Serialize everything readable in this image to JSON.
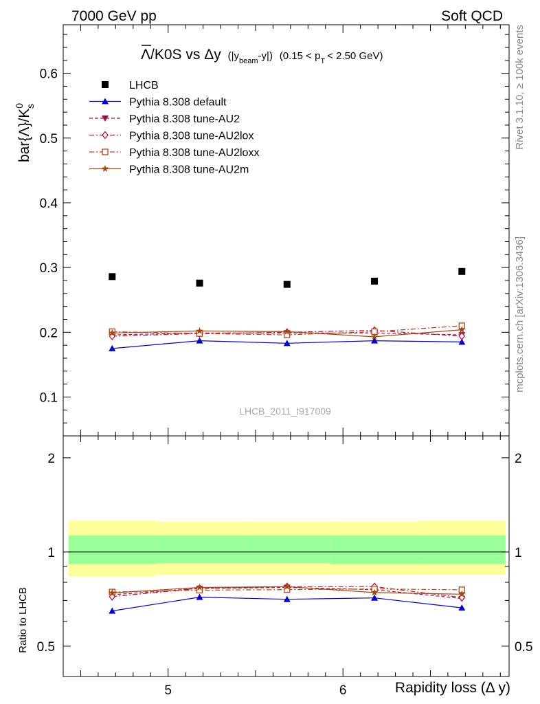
{
  "header": {
    "left": "7000 GeV pp",
    "right": "Soft QCD"
  },
  "side_labels": {
    "rivet": "Rivet 3.1.10, ≥ 100k events",
    "mcplots": "mcplots.cern.ch [arXiv:1306.3436]"
  },
  "watermark": "LHCB_2011_I917009",
  "colors": {
    "lhcb": "#000000",
    "default": "#0000dd",
    "au2": "#a0104a",
    "au2lox": "#c01030",
    "au2loxx": "#c04010",
    "au2m": "#a04a10",
    "band_outer": "#ffff99",
    "band_inner": "#99ff99"
  },
  "chart_data": [
    {
      "type": "scatter",
      "title_parts": {
        "main": "Λ/K0S vs Δy",
        "sel_open": "(|y",
        "sel_sub": "beam",
        "sel_close": "-y|)",
        "range_open": "(0.15 < p",
        "range_sub": "T",
        "range_close": "< 2.50 GeV)"
      },
      "ylabel": "bar{Λ}/K",
      "ylabel_sup": "0",
      "ylabel_sub": "s",
      "ylim": [
        0.04,
        0.675
      ],
      "xlim": [
        4.4,
        6.95
      ],
      "yticks": [
        0.1,
        0.2,
        0.3,
        0.4,
        0.5,
        0.6
      ],
      "ytick_labels": [
        "0.1",
        "0.2",
        "0.3",
        "0.4",
        "0.5",
        "0.6"
      ],
      "x": [
        4.68,
        5.18,
        5.68,
        6.18,
        6.68
      ],
      "series": [
        {
          "name": "LHCB",
          "key": "lhcb",
          "marker": "square",
          "line": "none",
          "values": [
            0.286,
            0.276,
            0.274,
            0.279,
            0.294
          ]
        },
        {
          "name": "Pythia 8.308 default",
          "key": "default",
          "marker": "triangle",
          "line": "solid",
          "values": [
            0.175,
            0.187,
            0.183,
            0.187,
            0.185
          ]
        },
        {
          "name": "Pythia 8.308 tune-AU2",
          "key": "au2",
          "marker": "triangle-down",
          "line": "dashed",
          "values": [
            0.196,
            0.199,
            0.199,
            0.199,
            0.196
          ]
        },
        {
          "name": "Pythia 8.308 tune-AU2lox",
          "key": "au2lox",
          "marker": "diamond",
          "line": "dashdot",
          "values": [
            0.194,
            0.198,
            0.2,
            0.203,
            0.194
          ]
        },
        {
          "name": "Pythia 8.308 tune-AU2loxx",
          "key": "au2loxx",
          "marker": "open-square",
          "line": "dashdot",
          "values": [
            0.201,
            0.198,
            0.196,
            0.201,
            0.21
          ]
        },
        {
          "name": "Pythia 8.308 tune-AU2m",
          "key": "au2m",
          "marker": "star",
          "line": "solid",
          "values": [
            0.199,
            0.202,
            0.201,
            0.193,
            0.204
          ]
        }
      ],
      "legend_position": "top-left"
    },
    {
      "type": "line",
      "ylabel": "Ratio to LHCB",
      "xlabel": "Rapidity loss (Δ y)",
      "ylim": [
        0.4,
        2.35
      ],
      "log_y": true,
      "xlim": [
        4.4,
        6.95
      ],
      "yticks": [
        0.5,
        1,
        2
      ],
      "ytick_labels": [
        "0.5",
        "1",
        "2"
      ],
      "xticks": [
        5,
        6
      ],
      "xtick_labels": [
        "5",
        "6"
      ],
      "x": [
        4.68,
        5.18,
        5.68,
        6.18,
        6.68
      ],
      "bin_edges": [
        4.43,
        4.93,
        5.43,
        5.93,
        6.43,
        6.93
      ],
      "uncertainty_band": {
        "total_low": [
          0.835,
          0.845,
          0.845,
          0.845,
          0.845
        ],
        "total_high": [
          1.26,
          1.25,
          1.25,
          1.25,
          1.26
        ],
        "stat_low": [
          0.915,
          0.92,
          0.92,
          0.915,
          0.915
        ],
        "stat_high": [
          1.13,
          1.13,
          1.13,
          1.13,
          1.13
        ]
      },
      "series": [
        {
          "name": "Pythia 8.308 default",
          "key": "default",
          "marker": "triangle",
          "line": "solid",
          "values": [
            0.648,
            0.717,
            0.706,
            0.713,
            0.663
          ]
        },
        {
          "name": "Pythia 8.308 tune-AU2",
          "key": "au2",
          "marker": "triangle-down",
          "line": "dashed",
          "values": [
            0.73,
            0.765,
            0.77,
            0.758,
            0.71
          ]
        },
        {
          "name": "Pythia 8.308 tune-AU2lox",
          "key": "au2lox",
          "marker": "diamond",
          "line": "dashdot",
          "values": [
            0.72,
            0.765,
            0.775,
            0.775,
            0.715
          ]
        },
        {
          "name": "Pythia 8.308 tune-AU2loxx",
          "key": "au2loxx",
          "marker": "open-square",
          "line": "dashdot",
          "values": [
            0.745,
            0.755,
            0.758,
            0.762,
            0.757
          ]
        },
        {
          "name": "Pythia 8.308 tune-AU2m",
          "key": "au2m",
          "marker": "star",
          "line": "solid",
          "values": [
            0.74,
            0.77,
            0.775,
            0.742,
            0.733
          ]
        }
      ]
    }
  ]
}
